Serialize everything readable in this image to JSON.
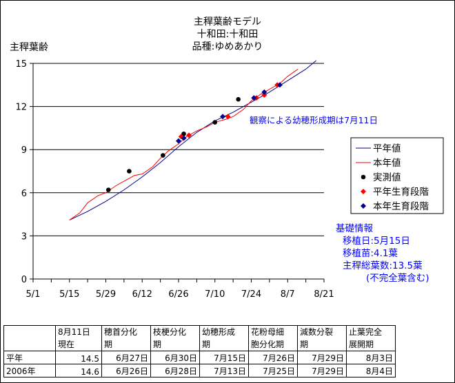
{
  "chart_data": {
    "type": "line",
    "title": [
      "主稈葉齢モデル",
      "十和田:十和田",
      "品種:ゆめあかり"
    ],
    "ylabel": "主稈葉齢",
    "xlabel": "",
    "ylim": [
      0,
      15
    ],
    "yticks": [
      0,
      3,
      6,
      9,
      12,
      15
    ],
    "xlim": [
      "5/1",
      "8/21"
    ],
    "xticks": [
      "5/1",
      "5/15",
      "5/29",
      "6/12",
      "6/26",
      "7/10",
      "7/24",
      "8/7",
      "8/21"
    ],
    "grid": "horizontal",
    "legend_position": "right",
    "series": [
      {
        "name": "平年値",
        "kind": "line",
        "color": "#00008b",
        "points": [
          [
            "5/15",
            4.1
          ],
          [
            "5/22",
            4.7
          ],
          [
            "5/29",
            5.4
          ],
          [
            "6/5",
            6.2
          ],
          [
            "6/12",
            7.1
          ],
          [
            "6/19",
            8.1
          ],
          [
            "6/26",
            9.2
          ],
          [
            "7/3",
            10.2
          ],
          [
            "7/10",
            11.0
          ],
          [
            "7/17",
            11.6
          ],
          [
            "7/24",
            12.3
          ],
          [
            "7/31",
            13.0
          ],
          [
            "8/7",
            13.8
          ],
          [
            "8/14",
            14.6
          ],
          [
            "8/18",
            15.2
          ]
        ]
      },
      {
        "name": "本年値",
        "kind": "line",
        "color": "#ff0000",
        "points": [
          [
            "5/15",
            4.1
          ],
          [
            "5/19",
            4.6
          ],
          [
            "5/22",
            5.3
          ],
          [
            "5/26",
            5.8
          ],
          [
            "5/29",
            6.0
          ],
          [
            "6/2",
            6.5
          ],
          [
            "6/5",
            6.8
          ],
          [
            "6/9",
            7.2
          ],
          [
            "6/12",
            7.3
          ],
          [
            "6/16",
            7.8
          ],
          [
            "6/19",
            8.4
          ],
          [
            "6/22",
            8.9
          ],
          [
            "6/26",
            9.4
          ],
          [
            "6/29",
            9.9
          ],
          [
            "7/3",
            10.3
          ],
          [
            "7/7",
            10.6
          ],
          [
            "7/10",
            10.9
          ],
          [
            "7/14",
            11.1
          ],
          [
            "7/17",
            11.3
          ],
          [
            "7/21",
            11.8
          ],
          [
            "7/24",
            12.4
          ],
          [
            "7/28",
            12.9
          ],
          [
            "7/31",
            13.2
          ],
          [
            "8/4",
            13.6
          ],
          [
            "8/7",
            14.1
          ],
          [
            "8/11",
            14.6
          ]
        ]
      },
      {
        "name": "実測値",
        "kind": "scatter",
        "marker": "circle",
        "color": "#000000",
        "points": [
          [
            "5/30",
            6.2
          ],
          [
            "6/7",
            7.5
          ],
          [
            "6/20",
            8.6
          ],
          [
            "6/28",
            10.1
          ],
          [
            "7/10",
            10.9
          ],
          [
            "7/19",
            12.5
          ]
        ]
      },
      {
        "name": "平年生育段階",
        "kind": "scatter",
        "marker": "diamond",
        "color": "#ff0000",
        "points": [
          [
            "6/27",
            9.9
          ],
          [
            "6/30",
            10.0
          ],
          [
            "7/15",
            11.3
          ],
          [
            "7/26",
            12.6
          ],
          [
            "7/29",
            12.8
          ],
          [
            "8/3",
            13.5
          ]
        ]
      },
      {
        "name": "本年生育段階",
        "kind": "scatter",
        "marker": "diamond",
        "color": "#00008b",
        "points": [
          [
            "6/26",
            9.6
          ],
          [
            "6/28",
            9.8
          ],
          [
            "7/13",
            11.3
          ],
          [
            "7/25",
            12.6
          ],
          [
            "7/29",
            13.0
          ],
          [
            "8/4",
            13.5
          ]
        ]
      }
    ],
    "annotations": [
      {
        "text": "観察による幼穂形成期は7月11日",
        "color": "#0000ff"
      }
    ]
  },
  "info": {
    "color": "#0000ff",
    "lines": [
      "基礎情報",
      "移植日:5月15日",
      "移植苗:4.1葉",
      "主稈総葉数:13.5葉",
      "(不完全葉含む)"
    ]
  },
  "table": {
    "headers": [
      [
        "",
        ""
      ],
      [
        "8月11日",
        "現在"
      ],
      [
        "穂首分化",
        "期"
      ],
      [
        "枝梗分化",
        "期"
      ],
      [
        "幼穂形成",
        "期"
      ],
      [
        "花粉母細",
        "胞分化期"
      ],
      [
        "減数分裂",
        "期"
      ],
      [
        "止葉完全",
        "展開期"
      ]
    ],
    "rows": [
      [
        "平年",
        "14.5",
        "6月27日",
        "6月30日",
        "7月15日",
        "7月26日",
        "7月29日",
        "8月3日"
      ],
      [
        "2006年",
        "14.6",
        "6月26日",
        "6月28日",
        "7月13日",
        "7月25日",
        "7月29日",
        "8月4日"
      ]
    ]
  }
}
